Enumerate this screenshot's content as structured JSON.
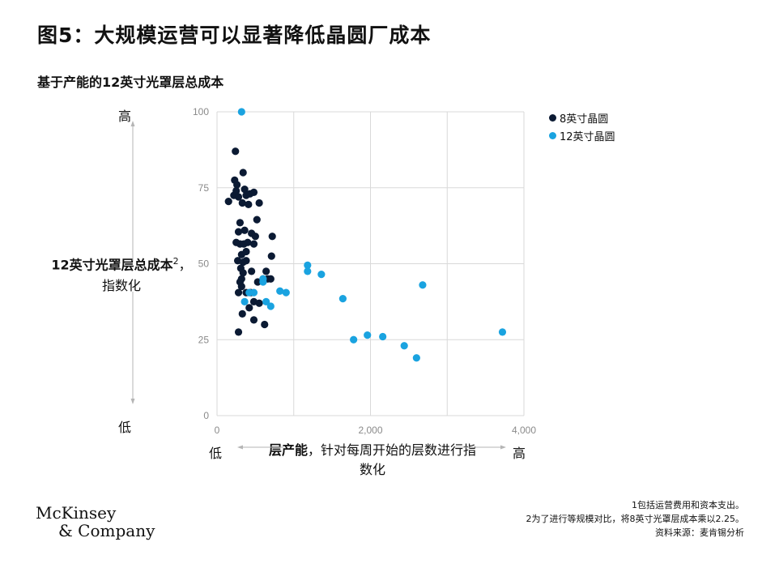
{
  "title": "图5：大规模运营可以显著降低晶圆厂成本",
  "subtitle": "基于产能的12英寸光罩层总成本",
  "y_axis": {
    "high_label": "高",
    "low_label": "低",
    "title_bold": "12英寸光罩层总成本",
    "title_sup": "2",
    "title_rest": "，指数化"
  },
  "x_axis": {
    "low_label": "低",
    "high_label": "高",
    "title_bold": "层产能",
    "title_rest": "，针对每周开始的层数进行指数化"
  },
  "logo": {
    "line1": "McKinsey",
    "line2": "& Company"
  },
  "notes": {
    "note1": "1包括运营费用和资本支出。",
    "note2": "2为了进行等规模对比，将8英寸光罩层成本乘以2.25。",
    "source": "资料来源：麦肯锡分析"
  },
  "colors": {
    "series_8inch": "#0b1a33",
    "series_12inch": "#1aa3e0",
    "grid": "#d9d9d9"
  },
  "chart_data": {
    "type": "scatter",
    "xlim": [
      0,
      4000
    ],
    "ylim": [
      0,
      100
    ],
    "x_ticks": [
      0,
      2000,
      4000
    ],
    "x_tick_labels": [
      "0",
      "2,000",
      "4,000"
    ],
    "y_ticks": [
      0,
      25,
      50,
      75,
      100
    ],
    "y_tick_labels": [
      "0",
      "25",
      "50",
      "75",
      "100"
    ],
    "grid": true,
    "legend_position": "top-right",
    "series": [
      {
        "name": "8英寸晶圆",
        "points": [
          [
            240,
            87
          ],
          [
            150,
            70.5
          ],
          [
            220,
            72.5
          ],
          [
            230,
            77.5
          ],
          [
            260,
            76
          ],
          [
            250,
            74
          ],
          [
            280,
            72
          ],
          [
            300,
            63.5
          ],
          [
            340,
            80
          ],
          [
            360,
            74.5
          ],
          [
            330,
            70
          ],
          [
            380,
            72.5
          ],
          [
            410,
            69.5
          ],
          [
            430,
            73
          ],
          [
            480,
            73.5
          ],
          [
            550,
            70
          ],
          [
            520,
            64.5
          ],
          [
            280,
            60.5
          ],
          [
            300,
            56.5
          ],
          [
            320,
            53
          ],
          [
            340,
            50.5
          ],
          [
            310,
            48.5
          ],
          [
            360,
            61
          ],
          [
            350,
            56.5
          ],
          [
            400,
            57
          ],
          [
            450,
            60
          ],
          [
            480,
            56.5
          ],
          [
            500,
            59
          ],
          [
            380,
            51
          ],
          [
            340,
            47
          ],
          [
            320,
            45
          ],
          [
            300,
            44
          ],
          [
            450,
            47.5
          ],
          [
            530,
            44
          ],
          [
            600,
            44.5
          ],
          [
            640,
            47.5
          ],
          [
            720,
            59
          ],
          [
            710,
            52.5
          ],
          [
            280,
            40.5
          ],
          [
            320,
            42.5
          ],
          [
            380,
            40.5
          ],
          [
            440,
            40.5
          ],
          [
            420,
            35.5
          ],
          [
            480,
            37.5
          ],
          [
            550,
            37
          ],
          [
            600,
            45
          ],
          [
            660,
            45
          ],
          [
            700,
            45
          ],
          [
            380,
            54
          ],
          [
            330,
            33.5
          ],
          [
            480,
            31.5
          ],
          [
            620,
            30
          ],
          [
            280,
            27.5
          ],
          [
            250,
            57
          ],
          [
            270,
            51
          ]
        ]
      },
      {
        "name": "12英寸晶圆",
        "points": [
          [
            320,
            100
          ],
          [
            1180,
            49.5
          ],
          [
            1180,
            47.5
          ],
          [
            1360,
            46.5
          ],
          [
            1640,
            38.5
          ],
          [
            1780,
            25
          ],
          [
            1960,
            26.5
          ],
          [
            2160,
            26
          ],
          [
            2440,
            23
          ],
          [
            2600,
            19
          ],
          [
            2680,
            43
          ],
          [
            3720,
            27.5
          ],
          [
            600,
            45
          ],
          [
            600,
            44
          ],
          [
            820,
            41
          ],
          [
            900,
            40.5
          ],
          [
            700,
            36
          ],
          [
            640,
            37.5
          ],
          [
            420,
            40.5
          ],
          [
            480,
            40.5
          ],
          [
            360,
            37.5
          ]
        ]
      }
    ]
  }
}
